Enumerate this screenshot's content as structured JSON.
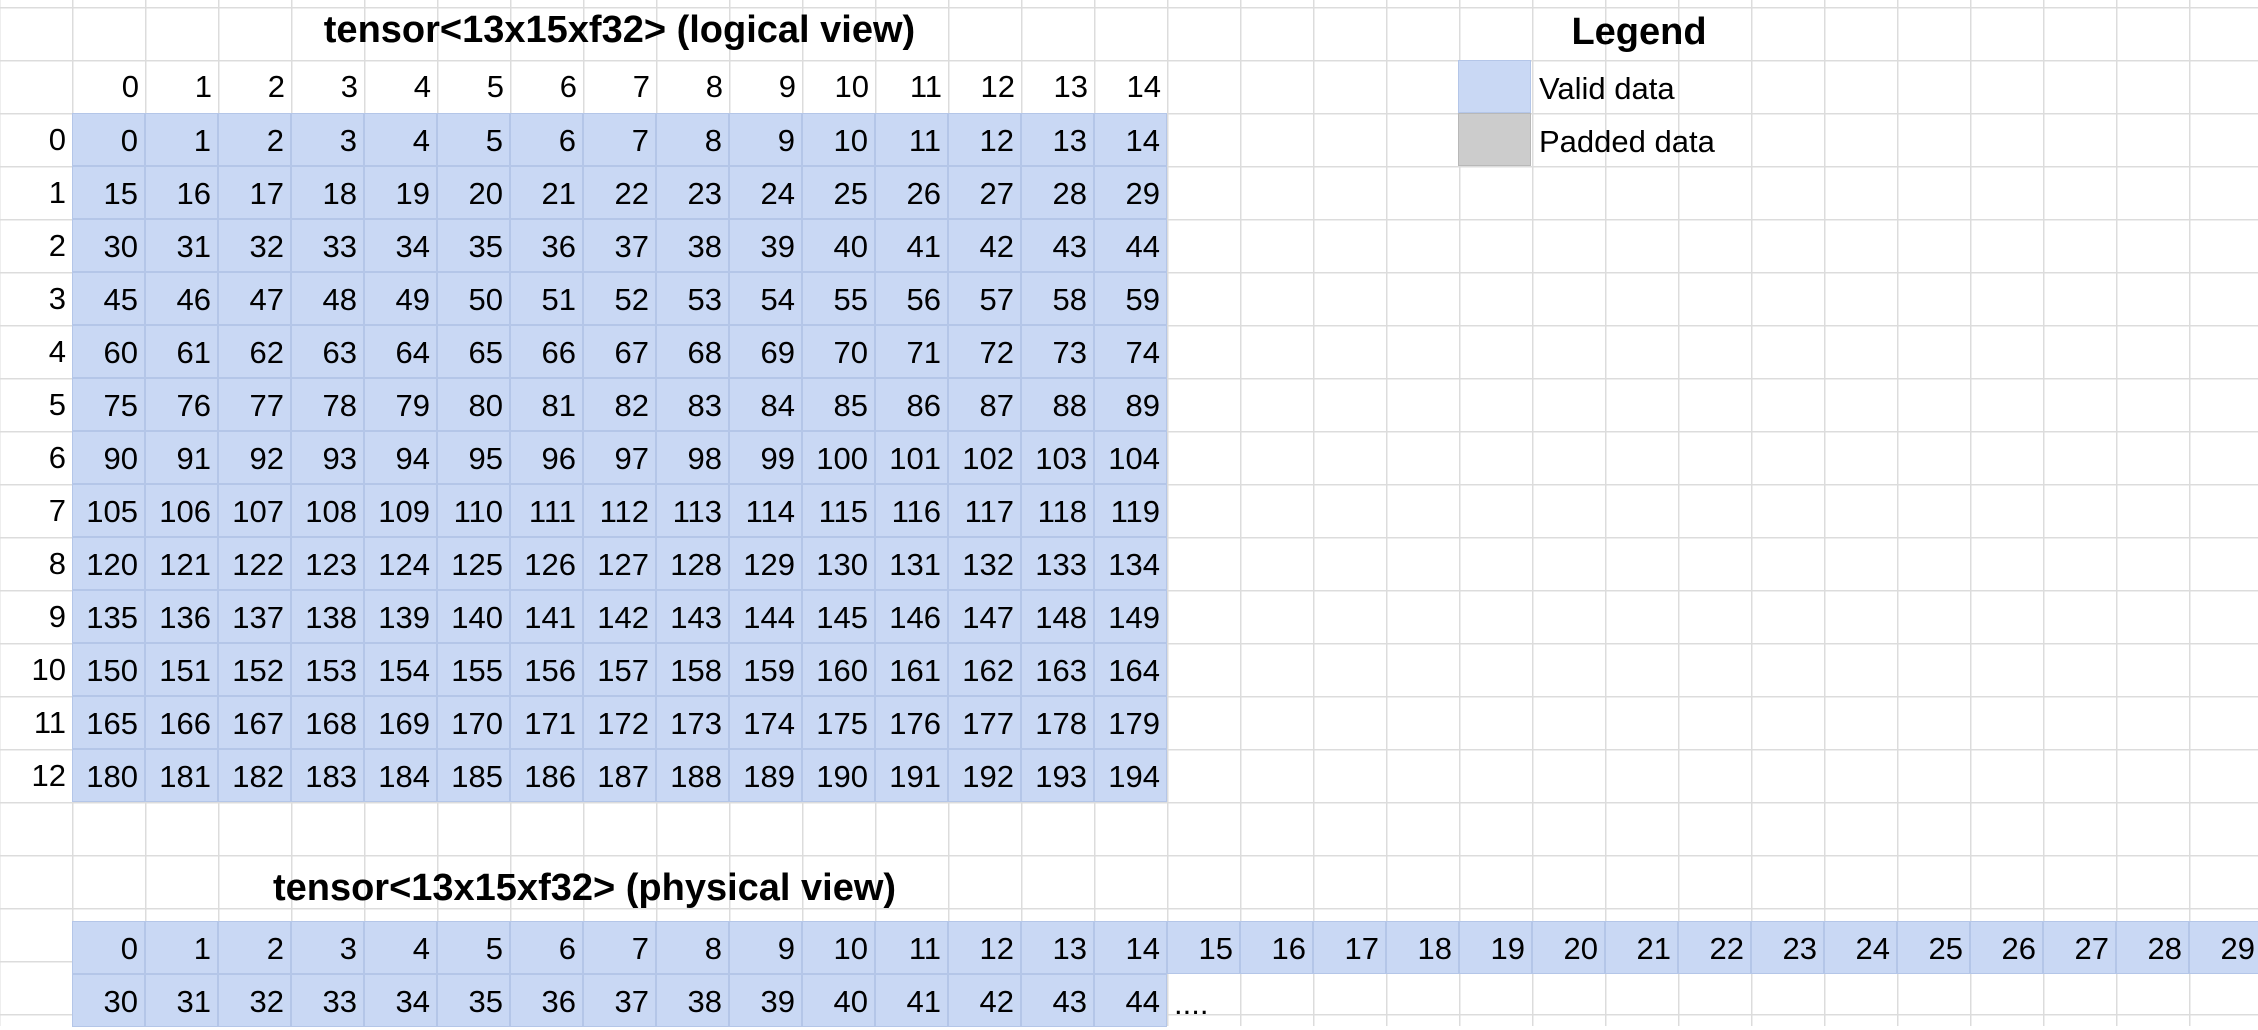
{
  "logical": {
    "title": "tensor<13x15xf32> (logical view)",
    "col_headers": [
      "0",
      "1",
      "2",
      "3",
      "4",
      "5",
      "6",
      "7",
      "8",
      "9",
      "10",
      "11",
      "12",
      "13",
      "14"
    ],
    "row_headers": [
      "0",
      "1",
      "2",
      "3",
      "4",
      "5",
      "6",
      "7",
      "8",
      "9",
      "10",
      "11",
      "12"
    ],
    "rows": [
      [
        "0",
        "1",
        "2",
        "3",
        "4",
        "5",
        "6",
        "7",
        "8",
        "9",
        "10",
        "11",
        "12",
        "13",
        "14"
      ],
      [
        "15",
        "16",
        "17",
        "18",
        "19",
        "20",
        "21",
        "22",
        "23",
        "24",
        "25",
        "26",
        "27",
        "28",
        "29"
      ],
      [
        "30",
        "31",
        "32",
        "33",
        "34",
        "35",
        "36",
        "37",
        "38",
        "39",
        "40",
        "41",
        "42",
        "43",
        "44"
      ],
      [
        "45",
        "46",
        "47",
        "48",
        "49",
        "50",
        "51",
        "52",
        "53",
        "54",
        "55",
        "56",
        "57",
        "58",
        "59"
      ],
      [
        "60",
        "61",
        "62",
        "63",
        "64",
        "65",
        "66",
        "67",
        "68",
        "69",
        "70",
        "71",
        "72",
        "73",
        "74"
      ],
      [
        "75",
        "76",
        "77",
        "78",
        "79",
        "80",
        "81",
        "82",
        "83",
        "84",
        "85",
        "86",
        "87",
        "88",
        "89"
      ],
      [
        "90",
        "91",
        "92",
        "93",
        "94",
        "95",
        "96",
        "97",
        "98",
        "99",
        "100",
        "101",
        "102",
        "103",
        "104"
      ],
      [
        "105",
        "106",
        "107",
        "108",
        "109",
        "110",
        "111",
        "112",
        "113",
        "114",
        "115",
        "116",
        "117",
        "118",
        "119"
      ],
      [
        "120",
        "121",
        "122",
        "123",
        "124",
        "125",
        "126",
        "127",
        "128",
        "129",
        "130",
        "131",
        "132",
        "133",
        "134"
      ],
      [
        "135",
        "136",
        "137",
        "138",
        "139",
        "140",
        "141",
        "142",
        "143",
        "144",
        "145",
        "146",
        "147",
        "148",
        "149"
      ],
      [
        "150",
        "151",
        "152",
        "153",
        "154",
        "155",
        "156",
        "157",
        "158",
        "159",
        "160",
        "161",
        "162",
        "163",
        "164"
      ],
      [
        "165",
        "166",
        "167",
        "168",
        "169",
        "170",
        "171",
        "172",
        "173",
        "174",
        "175",
        "176",
        "177",
        "178",
        "179"
      ],
      [
        "180",
        "181",
        "182",
        "183",
        "184",
        "185",
        "186",
        "187",
        "188",
        "189",
        "190",
        "191",
        "192",
        "193",
        "194"
      ]
    ]
  },
  "legend": {
    "title": "Legend",
    "items": [
      {
        "label": "Valid data",
        "color": "#c9d8f4"
      },
      {
        "label": "Padded data",
        "color": "#cccccc"
      }
    ]
  },
  "physical": {
    "title": "tensor<13x15xf32> (physical view)",
    "rows": [
      [
        "0",
        "1",
        "2",
        "3",
        "4",
        "5",
        "6",
        "7",
        "8",
        "9",
        "10",
        "11",
        "12",
        "13",
        "14",
        "15",
        "16",
        "17",
        "18",
        "19",
        "20",
        "21",
        "22",
        "23",
        "24",
        "25",
        "26",
        "27",
        "28",
        "29"
      ],
      [
        "30",
        "31",
        "32",
        "33",
        "34",
        "35",
        "36",
        "37",
        "38",
        "39",
        "40",
        "41",
        "42",
        "43",
        "44"
      ]
    ],
    "ellipsis": "...."
  }
}
